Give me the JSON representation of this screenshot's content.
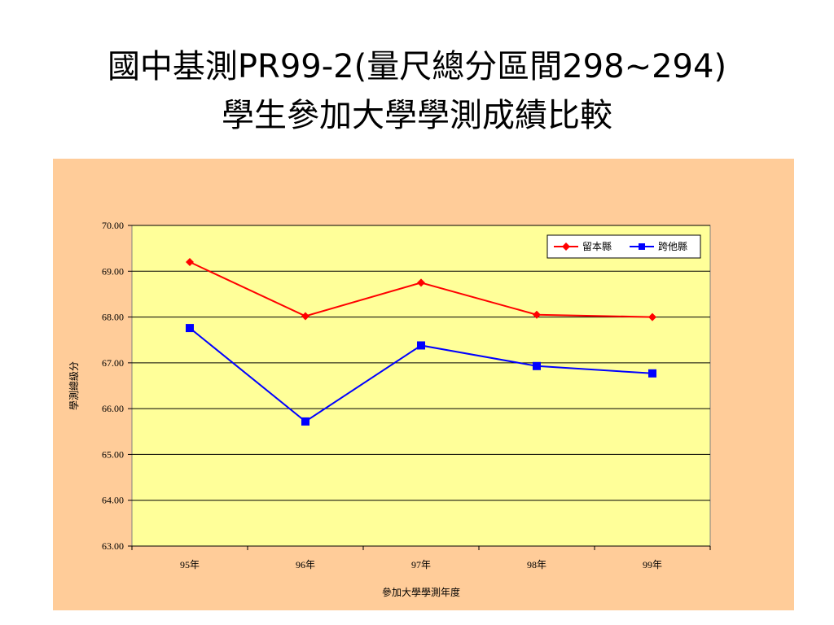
{
  "slide": {
    "title_line1": "國中基測PR99-2(量尺總分區間298~294)",
    "title_line2": "學生參加大學學測成績比較"
  },
  "colors": {
    "panel_bg": "#ffcc99",
    "plot_bg": "#ffff99",
    "series_1": "#ff0000",
    "series_2": "#0000ff"
  },
  "chart_data": {
    "type": "line",
    "categories": [
      "95年",
      "96年",
      "97年",
      "98年",
      "99年"
    ],
    "series": [
      {
        "name": "留本縣",
        "values": [
          69.2,
          68.02,
          68.75,
          68.05,
          68.0
        ],
        "color": "#ff0000",
        "marker": "diamond"
      },
      {
        "name": "跨他縣",
        "values": [
          67.76,
          65.72,
          67.38,
          66.93,
          66.77
        ],
        "color": "#0000ff",
        "marker": "square"
      }
    ],
    "xlabel": "參加大學學測年度",
    "ylabel": "學測總級分",
    "ylim": [
      63.0,
      70.0
    ],
    "yticks": [
      "63.00",
      "64.00",
      "65.00",
      "66.00",
      "67.00",
      "68.00",
      "69.00",
      "70.00"
    ],
    "grid": true,
    "legend": "top-right"
  }
}
